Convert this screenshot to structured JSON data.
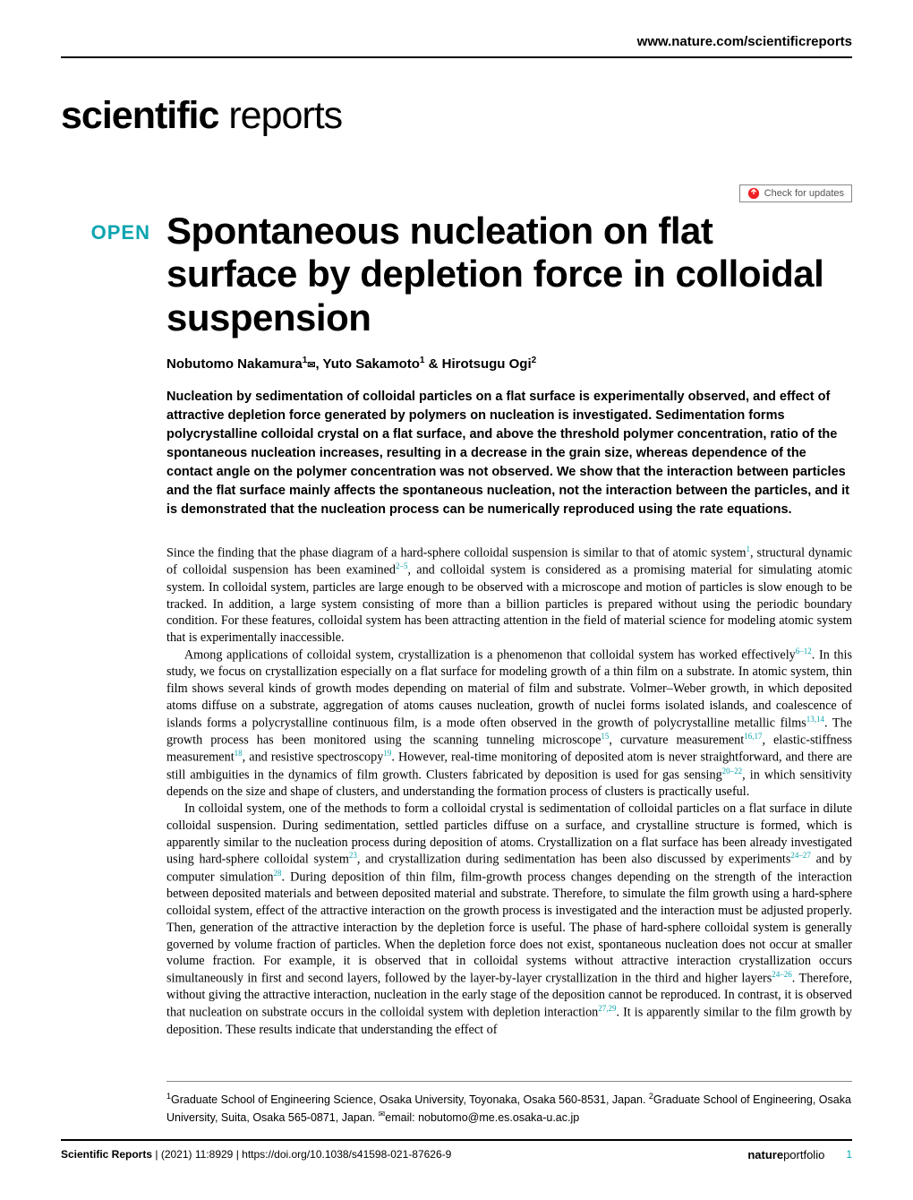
{
  "header_url": "www.nature.com/scientificreports",
  "journal_logo_bold": "scientific",
  "journal_logo_light": " reports",
  "check_updates_label": "Check for updates",
  "open_badge": "OPEN",
  "title": "Spontaneous nucleation on flat surface by depletion force in colloidal suspension",
  "authors_html": "Nobutomo Nakamura<sup>1</sup><span class=\"mail-icon\">✉</span>, Yuto Sakamoto<sup>1</sup> & Hirotsugu Ogi<sup>2</sup>",
  "abstract": "Nucleation by sedimentation of colloidal particles on a flat surface is experimentally observed, and effect of attractive depletion force generated by polymers on nucleation is investigated. Sedimentation forms polycrystalline colloidal crystal on a flat surface, and above the threshold polymer concentration, ratio of the spontaneous nucleation increases, resulting in a decrease in the grain size, whereas dependence of the contact angle on the polymer concentration was not observed. We show that the interaction between particles and the flat surface mainly affects the spontaneous nucleation, not the interaction between the particles, and it is demonstrated that the nucleation process can be numerically reproduced using the rate equations.",
  "body_paragraphs": [
    "Since the finding that the phase diagram of a hard-sphere colloidal suspension is similar to that of atomic system<span class=\"ref\">1</span>, structural dynamic of colloidal suspension has been examined<span class=\"ref\">2–5</span>, and colloidal system is considered as a promising material for simulating atomic system. In colloidal system, particles are large enough to be observed with a microscope and motion of particles is slow enough to be tracked. In addition, a large system consisting of more than a billion particles is prepared without using the periodic boundary condition. For these features, colloidal system has been attracting attention in the field of material science for modeling atomic system that is experimentally inaccessible.",
    "Among applications of colloidal system, crystallization is a phenomenon that colloidal system has worked effectively<span class=\"ref\">6–12</span>. In this study, we focus on crystallization especially on a flat surface for modeling growth of a thin film on a substrate. In atomic system, thin film shows several kinds of growth modes depending on material of film and substrate. Volmer–Weber growth, in which deposited atoms diffuse on a substrate, aggregation of atoms causes nucleation, growth of nuclei forms isolated islands, and coalescence of islands forms a polycrystalline continuous film, is a mode often observed in the growth of polycrystalline metallic films<span class=\"ref\">13,14</span>. The growth process has been monitored using the scanning tunneling microscope<span class=\"ref\">15</span>, curvature measurement<span class=\"ref\">16,17</span>, elastic-stiffness measurement<span class=\"ref\">18</span>, and resistive spectroscopy<span class=\"ref\">19</span>. However, real-time monitoring of deposited atom is never straightforward, and there are still ambiguities in the dynamics of film growth. Clusters fabricated by deposition is used for gas sensing<span class=\"ref\">20–22</span>, in which sensitivity depends on the size and shape of clusters, and understanding the formation process of clusters is practically useful.",
    "In colloidal system, one of the methods to form a colloidal crystal is sedimentation of colloidal particles on a flat surface in dilute colloidal suspension. During sedimentation, settled particles diffuse on a surface, and crystalline structure is formed, which is apparently similar to the nucleation process during deposition of atoms. Crystallization on a flat surface has been already investigated using hard-sphere colloidal system<span class=\"ref\">23</span>, and crystallization during sedimentation has been also discussed by experiments<span class=\"ref\">24–27</span> and by computer simulation<span class=\"ref\">28</span>. During deposition of thin film, film-growth process changes depending on the strength of the interaction between deposited materials and between deposited material and substrate. Therefore, to simulate the film growth using a hard-sphere colloidal system, effect of the attractive interaction on the growth process is investigated and the interaction must be adjusted properly. Then, generation of the attractive interaction by the depletion force is useful. The phase of hard-sphere colloidal system is generally governed by volume fraction of particles. When the depletion force does not exist, spontaneous nucleation does not occur at smaller volume fraction. For example, it is observed that in colloidal systems without attractive interaction crystallization occurs simultaneously in first and second layers, followed by the layer-by-layer crystallization in the third and higher layers<span class=\"ref\">24–26</span>. Therefore, without giving the attractive interaction, nucleation in the early stage of the deposition cannot be reproduced. In contrast, it is observed that nucleation on substrate occurs in the colloidal system with depletion interaction<span class=\"ref\">27,29</span>. It is apparently similar to the film growth by deposition. These results indicate that understanding the effect of"
  ],
  "affiliations": "<sup>1</sup>Graduate School of Engineering Science, Osaka University, Toyonaka, Osaka 560-8531, Japan. <sup>2</sup>Graduate School of Engineering, Osaka University, Suita, Osaka 565-0871, Japan. <sup>✉</sup>email: nobutomo@me.es.osaka-u.ac.jp",
  "footer": {
    "journal": "Scientific Reports",
    "citation": "(2021) 11:8929",
    "doi": "https://doi.org/10.1038/s41598-021-87626-9",
    "portfolio_bold": "nature",
    "portfolio_light": "portfolio",
    "page": "1"
  },
  "colors": {
    "teal": "#0ca5b0",
    "update_icon_fill": "#ed2124"
  }
}
